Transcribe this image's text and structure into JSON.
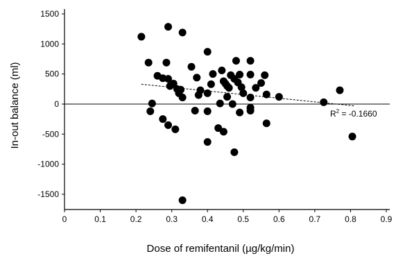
{
  "chart_data": {
    "type": "scatter",
    "xlabel": "Dose of remifentanil (µg/kg/min)",
    "ylabel": "In-out balance (ml)",
    "xlim": [
      0,
      0.9
    ],
    "ylim": [
      -1700,
      1550
    ],
    "xticks": [
      "0",
      "0.1",
      "0.2",
      "0.3",
      "0.4",
      "0.5",
      "0.6",
      "0.7",
      "0.8",
      "0.9"
    ],
    "yticks": [
      "1500",
      "1000",
      "500",
      "0",
      "-500",
      "-1000",
      "-1500"
    ],
    "xtick_values": [
      0,
      0.1,
      0.2,
      0.3,
      0.4,
      0.5,
      0.6,
      0.7,
      0.8,
      0.9
    ],
    "ytick_values": [
      1500,
      1000,
      500,
      0,
      -500,
      -1000,
      -1500
    ],
    "zero_line": true,
    "grid": false,
    "annotation": {
      "prefix": "R",
      "sup": "2",
      "suffix": " = -0.1660"
    },
    "trendline": {
      "x": [
        0.215,
        0.81
      ],
      "y": [
        330,
        -30
      ],
      "style": "dashed"
    },
    "points": [
      {
        "x": 0.215,
        "y": 1120
      },
      {
        "x": 0.29,
        "y": 1285
      },
      {
        "x": 0.33,
        "y": 1190
      },
      {
        "x": 0.235,
        "y": 690
      },
      {
        "x": 0.285,
        "y": 690
      },
      {
        "x": 0.26,
        "y": 470
      },
      {
        "x": 0.275,
        "y": 430
      },
      {
        "x": 0.29,
        "y": 420
      },
      {
        "x": 0.295,
        "y": 300
      },
      {
        "x": 0.305,
        "y": 340
      },
      {
        "x": 0.315,
        "y": 250
      },
      {
        "x": 0.32,
        "y": 180
      },
      {
        "x": 0.325,
        "y": 240
      },
      {
        "x": 0.33,
        "y": 110
      },
      {
        "x": 0.245,
        "y": 10
      },
      {
        "x": 0.24,
        "y": -120
      },
      {
        "x": 0.275,
        "y": -250
      },
      {
        "x": 0.29,
        "y": -350
      },
      {
        "x": 0.31,
        "y": -420
      },
      {
        "x": 0.33,
        "y": -1600
      },
      {
        "x": 0.355,
        "y": 620
      },
      {
        "x": 0.37,
        "y": 440
      },
      {
        "x": 0.375,
        "y": 150
      },
      {
        "x": 0.38,
        "y": 230
      },
      {
        "x": 0.365,
        "y": -110
      },
      {
        "x": 0.4,
        "y": 870
      },
      {
        "x": 0.41,
        "y": 330
      },
      {
        "x": 0.415,
        "y": 500
      },
      {
        "x": 0.4,
        "y": 180
      },
      {
        "x": 0.4,
        "y": -120
      },
      {
        "x": 0.4,
        "y": -630
      },
      {
        "x": 0.43,
        "y": -400
      },
      {
        "x": 0.44,
        "y": 560
      },
      {
        "x": 0.445,
        "y": 380
      },
      {
        "x": 0.45,
        "y": 340
      },
      {
        "x": 0.455,
        "y": 300
      },
      {
        "x": 0.46,
        "y": 270
      },
      {
        "x": 0.435,
        "y": 10
      },
      {
        "x": 0.455,
        "y": 120
      },
      {
        "x": 0.445,
        "y": -460
      },
      {
        "x": 0.465,
        "y": 480
      },
      {
        "x": 0.475,
        "y": 420
      },
      {
        "x": 0.47,
        "y": 0
      },
      {
        "x": 0.475,
        "y": -800
      },
      {
        "x": 0.48,
        "y": 720
      },
      {
        "x": 0.485,
        "y": 360
      },
      {
        "x": 0.49,
        "y": 490
      },
      {
        "x": 0.495,
        "y": 280
      },
      {
        "x": 0.5,
        "y": 180
      },
      {
        "x": 0.49,
        "y": -140
      },
      {
        "x": 0.52,
        "y": 720
      },
      {
        "x": 0.52,
        "y": 490
      },
      {
        "x": 0.52,
        "y": 110
      },
      {
        "x": 0.52,
        "y": -60
      },
      {
        "x": 0.52,
        "y": -110
      },
      {
        "x": 0.535,
        "y": 270
      },
      {
        "x": 0.55,
        "y": 350
      },
      {
        "x": 0.56,
        "y": 480
      },
      {
        "x": 0.565,
        "y": 160
      },
      {
        "x": 0.565,
        "y": -320
      },
      {
        "x": 0.6,
        "y": 120
      },
      {
        "x": 0.725,
        "y": 30
      },
      {
        "x": 0.77,
        "y": 230
      },
      {
        "x": 0.805,
        "y": -540
      }
    ]
  }
}
